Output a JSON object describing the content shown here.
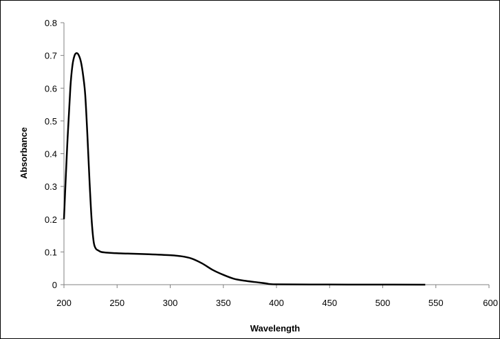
{
  "chart_data": {
    "type": "line",
    "title": "",
    "xlabel": "Wavelength",
    "ylabel": "Absorbance",
    "xlim": [
      200,
      600
    ],
    "ylim": [
      0,
      0.8
    ],
    "x_ticks": [
      200,
      250,
      300,
      350,
      400,
      450,
      500,
      550,
      600
    ],
    "y_ticks": [
      0,
      0.1,
      0.2,
      0.3,
      0.4,
      0.5,
      0.6,
      0.7,
      0.8
    ],
    "grid": false,
    "legend": "none",
    "series": [
      {
        "color": "#000000",
        "x": [
          200,
          203,
          206,
          208,
          210,
          212,
          214,
          216,
          218,
          220,
          222,
          224,
          226,
          228,
          230,
          232,
          235,
          240,
          250,
          260,
          280,
          300,
          310,
          320,
          330,
          340,
          350,
          360,
          370,
          380,
          390,
          400,
          450,
          500,
          540
        ],
        "y": [
          0.2,
          0.42,
          0.6,
          0.67,
          0.7,
          0.707,
          0.7,
          0.68,
          0.64,
          0.58,
          0.46,
          0.32,
          0.2,
          0.13,
          0.11,
          0.105,
          0.1,
          0.098,
          0.096,
          0.095,
          0.093,
          0.09,
          0.087,
          0.08,
          0.065,
          0.045,
          0.03,
          0.018,
          0.012,
          0.008,
          0.004,
          0.001,
          0.0005,
          0.0002,
          0.0001
        ]
      }
    ]
  }
}
